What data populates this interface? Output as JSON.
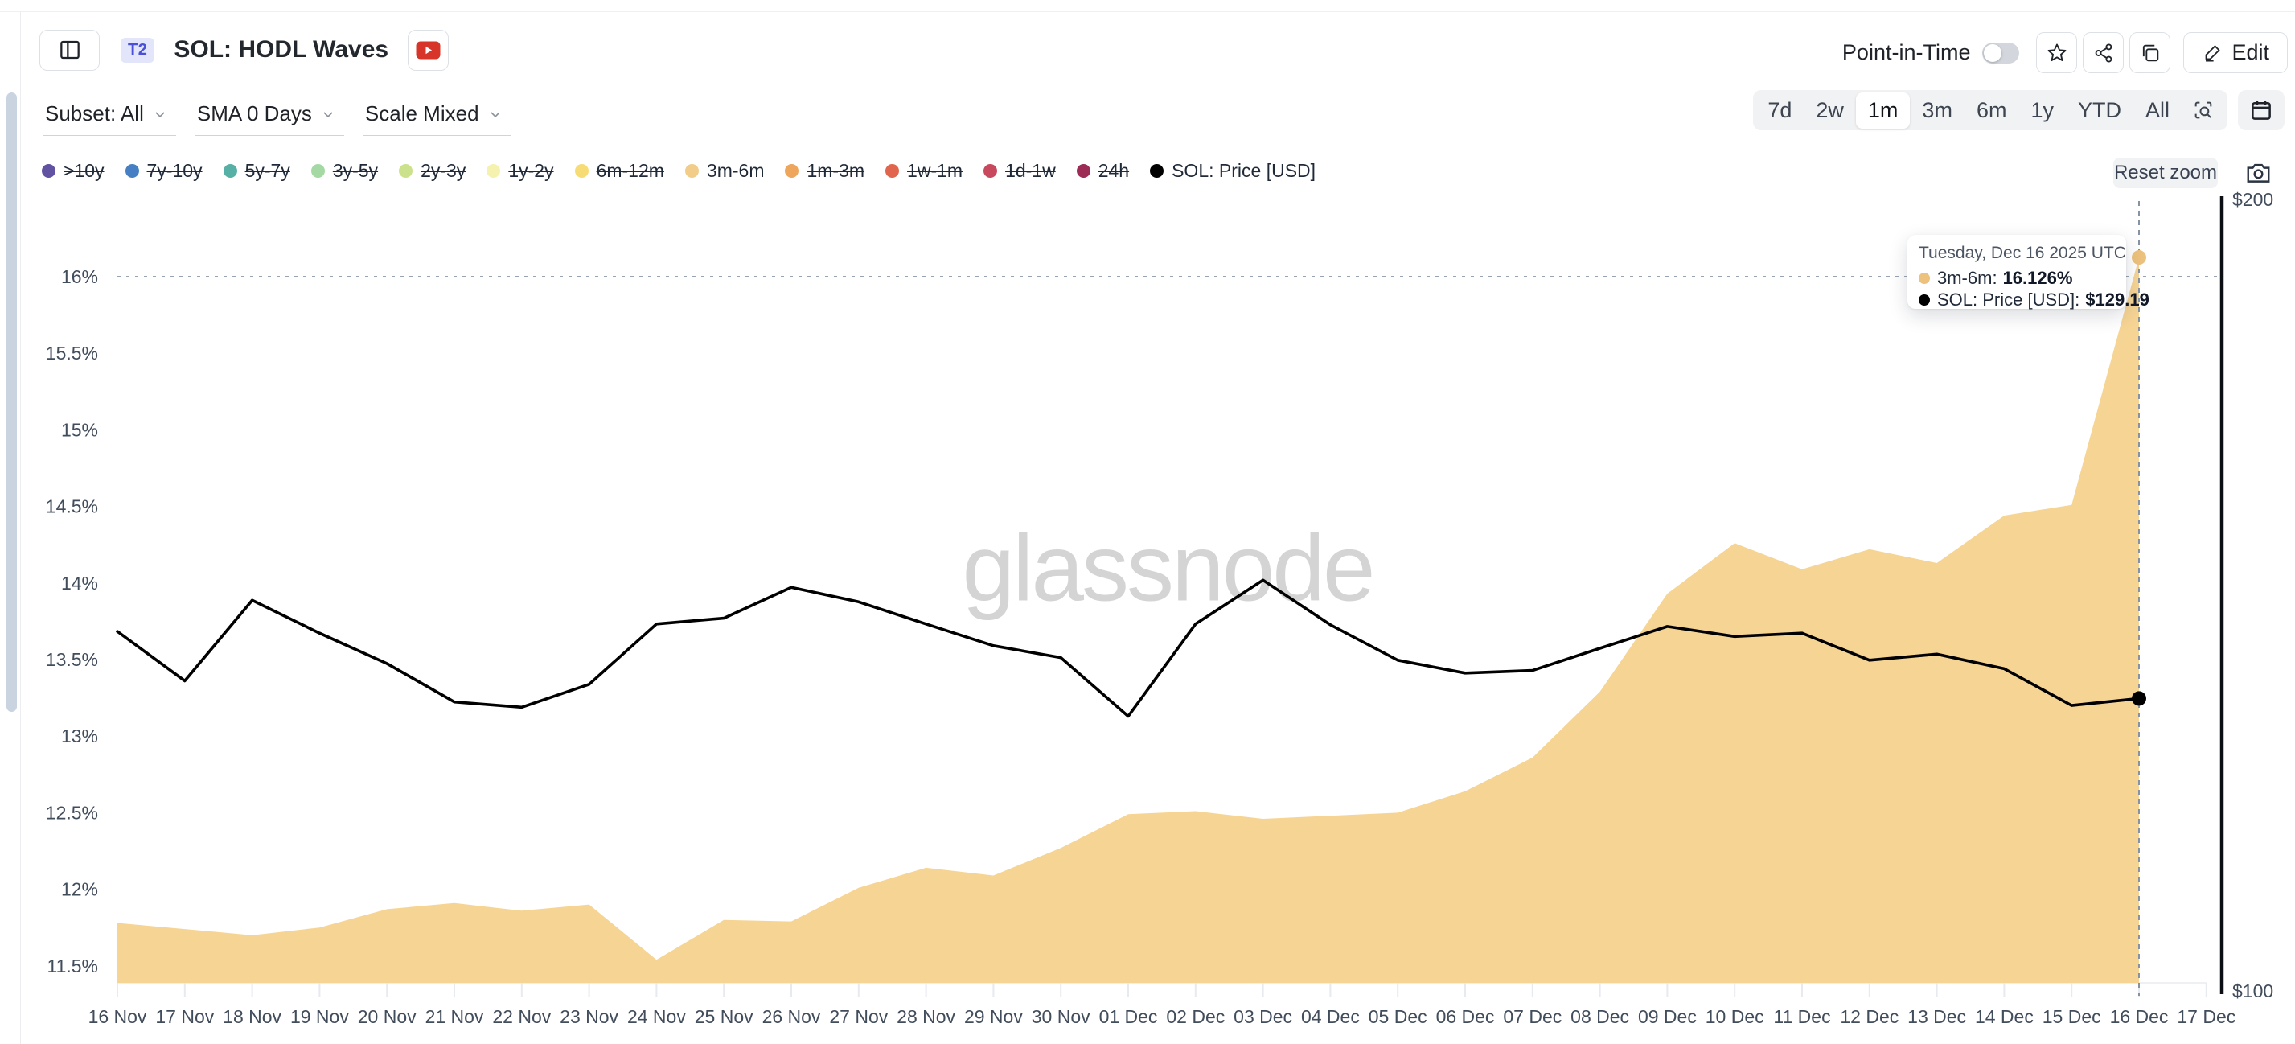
{
  "header": {
    "badge": "T2",
    "title": "SOL: HODL Waves",
    "point_in_time_label": "Point-in-Time",
    "point_in_time_on": false,
    "edit_label": "Edit"
  },
  "controls": {
    "subset": "Subset: All",
    "sma": "SMA 0 Days",
    "scale": "Scale Mixed",
    "ranges": [
      "7d",
      "2w",
      "1m",
      "3m",
      "6m",
      "1y",
      "YTD",
      "All"
    ],
    "active_range": "1m",
    "reset_zoom_label": "Reset zoom"
  },
  "legend": {
    "items": [
      {
        "label": ">10y",
        "color": "#6152a2",
        "active": false
      },
      {
        "label": "7y-10y",
        "color": "#467fc3",
        "active": false
      },
      {
        "label": "5y-7y",
        "color": "#57b0a6",
        "active": false
      },
      {
        "label": "3y-5y",
        "color": "#a4d9a4",
        "active": false
      },
      {
        "label": "2y-3y",
        "color": "#cbe18b",
        "active": false
      },
      {
        "label": "1y-2y",
        "color": "#f4f2ae",
        "active": false
      },
      {
        "label": "6m-12m",
        "color": "#f7dc76",
        "active": false
      },
      {
        "label": "3m-6m",
        "color": "#f2cd8a",
        "active": true
      },
      {
        "label": "1m-3m",
        "color": "#eda65c",
        "active": false
      },
      {
        "label": "1w-1m",
        "color": "#e0654c",
        "active": false
      },
      {
        "label": "1d-1w",
        "color": "#c8485e",
        "active": false
      },
      {
        "label": "24h",
        "color": "#9c2b55",
        "active": false
      },
      {
        "label": "SOL: Price [USD]",
        "color": "#000000",
        "active": true
      }
    ]
  },
  "tooltip": {
    "date": "Tuesday, Dec 16 2025 UTC",
    "rows": [
      {
        "label": "3m-6m:",
        "value": "16.126%",
        "color": "#edc27d"
      },
      {
        "label": "SOL: Price [USD]:",
        "value": "$129.19",
        "color": "#000000"
      }
    ]
  },
  "watermark": {
    "text": "glassnode"
  },
  "chart_data": {
    "type": "area",
    "x": [
      "16 Nov",
      "17 Nov",
      "18 Nov",
      "19 Nov",
      "20 Nov",
      "21 Nov",
      "22 Nov",
      "23 Nov",
      "24 Nov",
      "25 Nov",
      "26 Nov",
      "27 Nov",
      "28 Nov",
      "29 Nov",
      "30 Nov",
      "01 Dec",
      "02 Dec",
      "03 Dec",
      "04 Dec",
      "05 Dec",
      "06 Dec",
      "07 Dec",
      "08 Dec",
      "09 Dec",
      "10 Dec",
      "11 Dec",
      "12 Dec",
      "13 Dec",
      "14 Dec",
      "15 Dec",
      "16 Dec",
      "17 Dec"
    ],
    "series": [
      {
        "name": "3m-6m",
        "type": "area",
        "axis": "left_percent",
        "color": "#f6d494",
        "marker_color": "#edc27d",
        "values": [
          11.78,
          11.74,
          11.7,
          11.75,
          11.87,
          11.91,
          11.86,
          11.9,
          11.54,
          11.8,
          11.79,
          12.01,
          12.14,
          12.09,
          12.27,
          12.49,
          12.51,
          12.46,
          12.48,
          12.5,
          12.64,
          12.86,
          13.29,
          13.93,
          14.26,
          14.09,
          14.22,
          14.13,
          14.44,
          14.51,
          16.126
        ]
      },
      {
        "name": "SOL: Price [USD]",
        "type": "line",
        "axis": "right_usd_log",
        "color": "#000000",
        "values": [
          137.0,
          131.2,
          140.8,
          136.8,
          133.2,
          128.8,
          128.2,
          130.8,
          137.9,
          138.6,
          142.4,
          140.6,
          137.9,
          135.3,
          133.9,
          127.2,
          137.9,
          143.3,
          137.8,
          133.6,
          132.1,
          132.4,
          135.0,
          137.6,
          136.4,
          136.8,
          133.6,
          134.3,
          132.6,
          128.4,
          129.19
        ]
      }
    ],
    "y_left": {
      "tick_labels": [
        "16%",
        "15.5%",
        "15%",
        "14.5%",
        "14%",
        "13.5%",
        "13%",
        "12.5%",
        "12%",
        "11.5%"
      ],
      "tick_values": [
        16,
        15.5,
        15,
        14.5,
        14,
        13.5,
        13,
        12.5,
        12,
        11.5
      ]
    },
    "y_right": {
      "tick_labels": [
        "$200",
        "$100"
      ],
      "tick_values": [
        200,
        100
      ],
      "scale": "log"
    },
    "crosshair": {
      "x_label": "16 Dec",
      "dotted_level_pct": 16.0
    },
    "grid": "dotted-top-only",
    "legend_position": "top-left"
  }
}
